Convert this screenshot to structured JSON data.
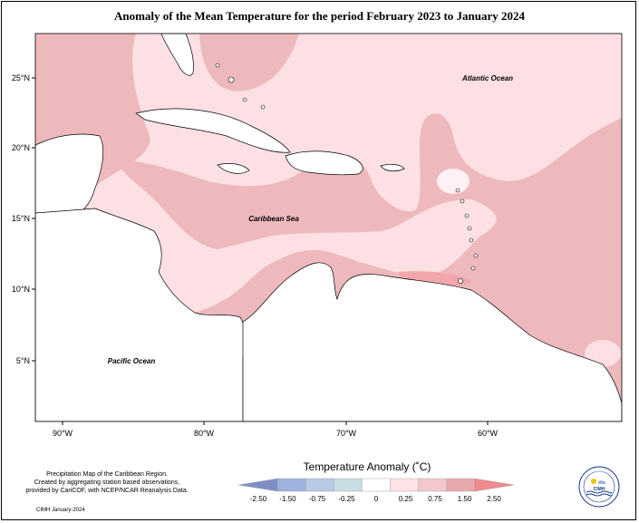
{
  "title": "Anomaly of the Mean Temperature for the period February 2023 to January 2024",
  "labels": {
    "atlantic": "Atlantic Ocean",
    "caribbean": "Caribbean Sea",
    "pacific": "Pacific Ocean"
  },
  "lat_ticks": [
    "25°N",
    "20°N",
    "15°N",
    "10°N",
    "5°N"
  ],
  "lon_ticks": [
    "90°W",
    "80°W",
    "70°W",
    "60°W"
  ],
  "legend": {
    "title": "Temperature Anomaly (˚C)",
    "ticks": [
      "-2.50",
      "-1.50",
      "-0.75",
      "-0.25",
      "0",
      "0.25",
      "0.75",
      "1.50",
      "2.50"
    ],
    "colors": [
      "#7f8fc6",
      "#9fb1de",
      "#b9c9e6",
      "#c8dde4",
      "#ffffff",
      "#fde3e6",
      "#f3c8cc",
      "#e8a8ae",
      "#f08a8e"
    ]
  },
  "credits": {
    "line1": "Precipitation Map of the Caribbean Region.",
    "line2": "Created by aggregating station based observations,",
    "line3": "provided by CariCOF, with NCEP/NCAR Reanalysis Data.",
    "date": "CIMH January-2024"
  },
  "logo": {
    "name": "CIMH",
    "ring_text": "CARIBBEAN INSTITUTE FOR METEOROLOGY AND HYDROLOGY"
  },
  "colors": {
    "anom_025_075": "#fde0e3",
    "anom_075_150": "#edb9bd",
    "anom_150_250": "#f09095",
    "land": "#ffffff"
  }
}
